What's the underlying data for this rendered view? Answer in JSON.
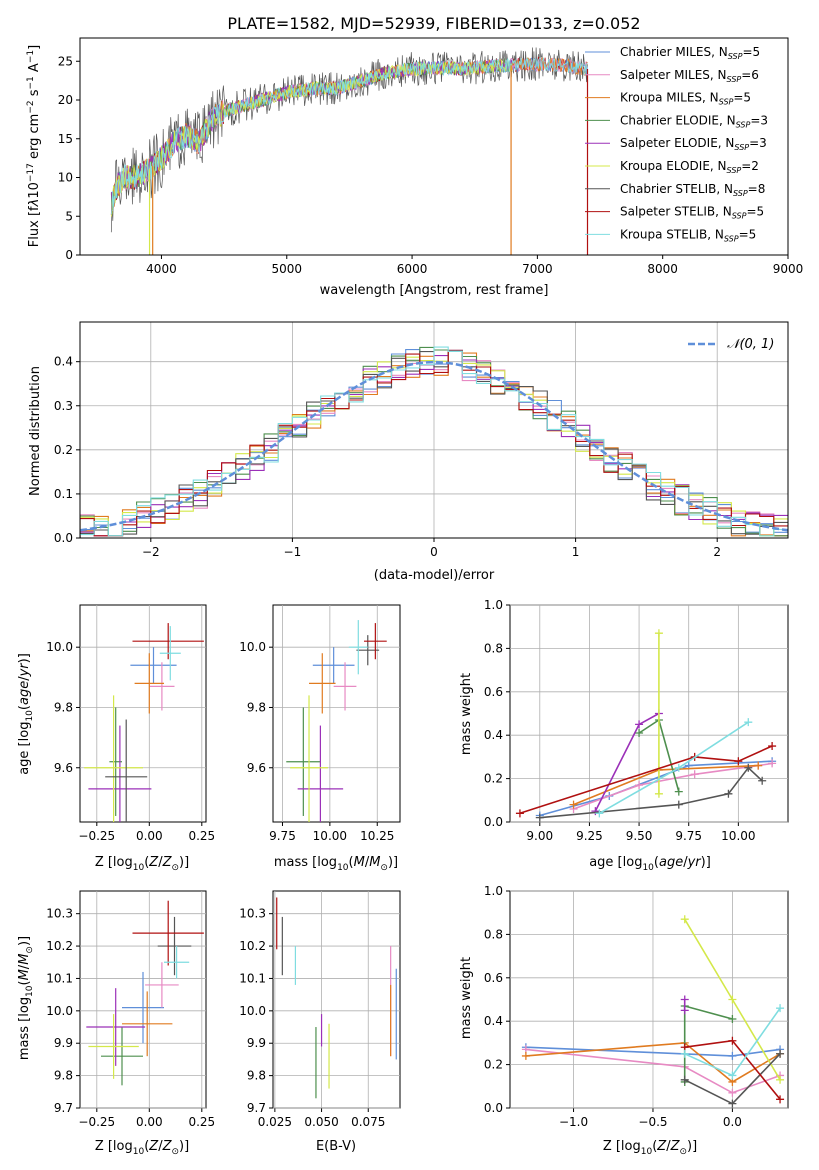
{
  "chart_data": [
    {
      "id": "spectrum",
      "type": "line",
      "title": "PLATE=1582, MJD=52939, FIBERID=0133, z=0.052",
      "xlabel": "wavelength [Angstrom, rest frame]",
      "ylabel": "Flux [f_λ10^-17 erg cm^-2 s^-1 A^-1]",
      "xlim": [
        3350,
        9000
      ],
      "ylim": [
        0,
        28
      ],
      "xticks": [
        4000,
        5000,
        6000,
        7000,
        8000,
        9000
      ],
      "yticks": [
        0,
        5,
        10,
        15,
        20,
        25
      ],
      "legend_position": "upper-right",
      "envelope": {
        "x": [
          3600,
          3650,
          3700,
          3800,
          3900,
          4000,
          4100,
          4200,
          4300,
          4400,
          4500,
          4600,
          4800,
          5000,
          5200,
          5400,
          5600,
          5800,
          6000,
          6200,
          6400,
          6600,
          6800,
          7000,
          7200,
          7400
        ],
        "y": [
          6.5,
          9,
          10,
          10,
          11,
          12.5,
          14.5,
          15.5,
          14.5,
          17.5,
          18.5,
          19,
          20,
          21,
          21.5,
          21.5,
          22.5,
          23.5,
          24,
          24.2,
          24,
          24.3,
          24.5,
          24.6,
          24.5,
          24
        ]
      },
      "series": [
        {
          "name": "Chabrier MILES",
          "nssp": "5",
          "color": "#5f8fd9",
          "end": 7400
        },
        {
          "name": "Salpeter MILES",
          "nssp": "6",
          "color": "#e78ac3",
          "end": 7400
        },
        {
          "name": "Kroupa MILES",
          "nssp": "5",
          "color": "#e07b20",
          "end": 7400
        },
        {
          "name": "Chabrier ELODIE",
          "nssp": "3",
          "color": "#4e8f4e",
          "end": 6800
        },
        {
          "name": "Salpeter ELODIE",
          "nssp": "3",
          "color": "#9b30b8",
          "end": 6800
        },
        {
          "name": "Kroupa ELODIE",
          "nssp": "2",
          "color": "#d4e84a",
          "end": 6800
        },
        {
          "name": "Chabrier STELIB",
          "nssp": "8",
          "color": "#555555",
          "end": 7400
        },
        {
          "name": "Salpeter STELIB",
          "nssp": "5",
          "color": "#b01010",
          "end": 7400
        },
        {
          "name": "Kroupa STELIB",
          "nssp": "5",
          "color": "#7fdde0",
          "end": 7400
        }
      ]
    },
    {
      "id": "residuals",
      "type": "area",
      "xlabel": "(data-model)/error",
      "ylabel": "Normed distribution",
      "xlim": [
        -2.5,
        2.5
      ],
      "ylim": [
        0,
        0.49
      ],
      "xticks": [
        -2,
        -1,
        0,
        1,
        2
      ],
      "yticks": [
        0.0,
        0.1,
        0.2,
        0.3,
        0.4
      ],
      "grid": true,
      "legend_position": "upper-right",
      "reference_curve": "𝒩(0, 1)",
      "bins": {
        "start": -2.5,
        "width": 0.1,
        "count": 50
      }
    },
    {
      "id": "Z-age",
      "type": "scatter",
      "xlabel": "Z [log10(Z/Z⊙)]",
      "ylabel": "age  [log10(age/yr)]",
      "xlim": [
        -0.33,
        0.27
      ],
      "ylim": [
        9.42,
        10.14
      ],
      "xticks": [
        -0.25,
        0.0,
        0.25
      ],
      "yticks": [
        9.6,
        9.8,
        10.0
      ],
      "grid": true,
      "points": [
        {
          "series": "Chabrier MILES",
          "x": 0.02,
          "xerr": 0.11,
          "y": 9.94,
          "yerr": 0.06
        },
        {
          "series": "Salpeter MILES",
          "x": 0.06,
          "xerr": 0.06,
          "y": 9.87,
          "yerr": 0.08
        },
        {
          "series": "Kroupa MILES",
          "x": 0.0,
          "xerr": 0.07,
          "y": 9.88,
          "yerr": 0.1
        },
        {
          "series": "Chabrier ELODIE",
          "x": -0.16,
          "xerr": 0.03,
          "y": 9.62,
          "yerr": 0.18
        },
        {
          "series": "Salpeter ELODIE",
          "x": -0.14,
          "xerr": 0.15,
          "y": 9.53,
          "yerr": 0.21
        },
        {
          "series": "Kroupa ELODIE",
          "x": -0.17,
          "xerr": 0.14,
          "y": 9.6,
          "yerr": 0.24
        },
        {
          "series": "Chabrier STELIB",
          "x": -0.11,
          "xerr": 0.1,
          "y": 9.57,
          "yerr": 0.19
        },
        {
          "series": "Salpeter STELIB",
          "x": 0.09,
          "xerr": 0.17,
          "y": 10.02,
          "yerr": 0.06
        },
        {
          "series": "Kroupa STELIB",
          "x": 0.1,
          "xerr": 0.05,
          "y": 9.98,
          "yerr": 0.09
        }
      ]
    },
    {
      "id": "mass-age",
      "type": "scatter",
      "xlabel": "mass [log10(M/M⊙)]",
      "ylabel": "",
      "xlim": [
        9.7,
        10.37
      ],
      "ylim": [
        9.42,
        10.14
      ],
      "xticks": [
        9.75,
        10.0,
        10.25
      ],
      "yticks": [
        9.6,
        9.8,
        10.0
      ],
      "grid": true,
      "points": [
        {
          "series": "Chabrier MILES",
          "x": 10.02,
          "xerr": 0.11,
          "y": 9.94,
          "yerr": 0.06
        },
        {
          "series": "Salpeter MILES",
          "x": 10.08,
          "xerr": 0.06,
          "y": 9.87,
          "yerr": 0.08
        },
        {
          "series": "Kroupa MILES",
          "x": 9.96,
          "xerr": 0.07,
          "y": 9.88,
          "yerr": 0.1
        },
        {
          "series": "Chabrier ELODIE",
          "x": 9.86,
          "xerr": 0.09,
          "y": 9.62,
          "yerr": 0.18
        },
        {
          "series": "Salpeter ELODIE",
          "x": 9.95,
          "xerr": 0.12,
          "y": 9.53,
          "yerr": 0.21
        },
        {
          "series": "Kroupa ELODIE",
          "x": 9.89,
          "xerr": 0.1,
          "y": 9.6,
          "yerr": 0.24
        },
        {
          "series": "Chabrier STELIB",
          "x": 10.2,
          "xerr": 0.06,
          "y": 9.99,
          "yerr": 0.05
        },
        {
          "series": "Salpeter STELIB",
          "x": 10.24,
          "xerr": 0.06,
          "y": 10.02,
          "yerr": 0.06
        },
        {
          "series": "Kroupa STELIB",
          "x": 10.15,
          "xerr": 0.05,
          "y": 10.0,
          "yerr": 0.09
        }
      ]
    },
    {
      "id": "age-weight",
      "type": "line",
      "xlabel": "age  [log10(age/yr)]",
      "ylabel": "mass weight",
      "xlim": [
        8.85,
        10.25
      ],
      "ylim": [
        0,
        1
      ],
      "xticks": [
        9.0,
        9.25,
        9.5,
        9.75,
        10.0
      ],
      "yticks": [
        0.0,
        0.2,
        0.4,
        0.6,
        0.8,
        1.0
      ],
      "grid": true,
      "series": [
        {
          "name": "Chabrier MILES",
          "x": [
            9.0,
            9.35,
            9.75,
            10.17
          ],
          "y": [
            0.03,
            0.12,
            0.26,
            0.28
          ]
        },
        {
          "name": "Salpeter MILES",
          "x": [
            9.17,
            9.5,
            9.78,
            10.1,
            10.17
          ],
          "y": [
            0.06,
            0.17,
            0.22,
            0.26,
            0.27
          ]
        },
        {
          "name": "Kroupa MILES",
          "x": [
            9.17,
            9.6,
            10.1
          ],
          "y": [
            0.08,
            0.24,
            0.26
          ]
        },
        {
          "name": "Chabrier ELODIE",
          "x": [
            9.5,
            9.6,
            9.7
          ],
          "y": [
            0.41,
            0.47,
            0.14
          ]
        },
        {
          "name": "Salpeter ELODIE",
          "x": [
            9.28,
            9.5,
            9.6
          ],
          "y": [
            0.05,
            0.45,
            0.5
          ]
        },
        {
          "name": "Kroupa ELODIE",
          "x": [
            9.6,
            9.6
          ],
          "y": [
            0.87,
            0.13
          ]
        },
        {
          "name": "Chabrier STELIB",
          "x": [
            9.0,
            9.7,
            9.95,
            10.05,
            10.12
          ],
          "y": [
            0.02,
            0.08,
            0.13,
            0.25,
            0.19
          ]
        },
        {
          "name": "Salpeter STELIB",
          "x": [
            8.9,
            9.78,
            10.0,
            10.17
          ],
          "y": [
            0.04,
            0.3,
            0.28,
            0.35
          ]
        },
        {
          "name": "Kroupa STELIB",
          "x": [
            9.3,
            9.7,
            10.05
          ],
          "y": [
            0.04,
            0.25,
            0.46
          ]
        }
      ]
    },
    {
      "id": "Z-mass",
      "type": "scatter",
      "xlabel": "Z [log10(Z/Z⊙)]",
      "ylabel": "mass [log10(M/M⊙)]",
      "xlim": [
        -0.33,
        0.27
      ],
      "ylim": [
        9.7,
        10.37
      ],
      "xticks": [
        -0.25,
        0.0,
        0.25
      ],
      "yticks": [
        9.7,
        9.8,
        9.9,
        10.0,
        10.1,
        10.2,
        10.3
      ],
      "grid": true,
      "points": [
        {
          "series": "Chabrier MILES",
          "x": -0.03,
          "xerr": 0.1,
          "y": 10.01,
          "yerr": 0.11
        },
        {
          "series": "Salpeter MILES",
          "x": 0.06,
          "xerr": 0.08,
          "y": 10.08,
          "yerr": 0.07
        },
        {
          "series": "Kroupa MILES",
          "x": -0.01,
          "xerr": 0.12,
          "y": 9.96,
          "yerr": 0.1
        },
        {
          "series": "Chabrier ELODIE",
          "x": -0.13,
          "xerr": 0.1,
          "y": 9.86,
          "yerr": 0.09
        },
        {
          "series": "Salpeter ELODIE",
          "x": -0.16,
          "xerr": 0.14,
          "y": 9.95,
          "yerr": 0.12
        },
        {
          "series": "Kroupa ELODIE",
          "x": -0.17,
          "xerr": 0.12,
          "y": 9.89,
          "yerr": 0.1
        },
        {
          "series": "Chabrier STELIB",
          "x": 0.12,
          "xerr": 0.08,
          "y": 10.2,
          "yerr": 0.09
        },
        {
          "series": "Salpeter STELIB",
          "x": 0.09,
          "xerr": 0.17,
          "y": 10.24,
          "yerr": 0.1
        },
        {
          "series": "Kroupa STELIB",
          "x": 0.13,
          "xerr": 0.06,
          "y": 10.15,
          "yerr": 0.05
        }
      ]
    },
    {
      "id": "ebv-mass",
      "type": "scatter",
      "xlabel": "E(B-V)",
      "ylabel": "",
      "xlim": [
        0.024,
        0.092
      ],
      "ylim": [
        9.7,
        10.37
      ],
      "xticks": [
        0.025,
        0.05,
        0.075
      ],
      "yticks": [
        9.7,
        9.8,
        9.9,
        10.0,
        10.1,
        10.2,
        10.3
      ],
      "grid": true,
      "points": [
        {
          "series": "Chabrier MILES",
          "x": 0.09,
          "yerr": 0.14,
          "y": 9.99
        },
        {
          "series": "Salpeter MILES",
          "x": 0.087,
          "yerr": 0.17,
          "y": 10.03
        },
        {
          "series": "Kroupa MILES",
          "x": 0.087,
          "yerr": 0.11,
          "y": 9.97
        },
        {
          "series": "Chabrier ELODIE",
          "x": 0.047,
          "yerr": 0.11,
          "y": 9.84
        },
        {
          "series": "Salpeter ELODIE",
          "x": 0.05,
          "yerr": 0.05,
          "y": 9.94
        },
        {
          "series": "Kroupa ELODIE",
          "x": 0.054,
          "yerr": 0.1,
          "y": 9.86
        },
        {
          "series": "Chabrier STELIB",
          "x": 0.029,
          "yerr": 0.09,
          "y": 10.2
        },
        {
          "series": "Salpeter STELIB",
          "x": 0.026,
          "yerr": 0.08,
          "y": 10.27
        },
        {
          "series": "Kroupa STELIB",
          "x": 0.036,
          "yerr": 0.06,
          "y": 10.14
        }
      ]
    },
    {
      "id": "Z-weight",
      "type": "line",
      "xlabel": "Z [log10(Z/Z⊙)]",
      "ylabel": "mass weight",
      "xlim": [
        -1.4,
        0.35
      ],
      "ylim": [
        0,
        1
      ],
      "xticks": [
        -1.0,
        -0.5,
        0.0
      ],
      "yticks": [
        0.0,
        0.2,
        0.4,
        0.6,
        0.8,
        1.0
      ],
      "grid": true,
      "series": [
        {
          "name": "Chabrier MILES",
          "x": [
            -1.3,
            0.0,
            0.3
          ],
          "y": [
            0.28,
            0.24,
            0.27
          ]
        },
        {
          "name": "Salpeter MILES",
          "x": [
            -1.3,
            -0.3,
            0.0,
            0.3
          ],
          "y": [
            0.27,
            0.19,
            0.07,
            0.15
          ]
        },
        {
          "name": "Kroupa MILES",
          "x": [
            -1.3,
            -0.3,
            0.0,
            0.3
          ],
          "y": [
            0.24,
            0.3,
            0.12,
            0.25
          ]
        },
        {
          "name": "Chabrier ELODIE",
          "x": [
            -0.3,
            -0.3,
            0.0
          ],
          "y": [
            0.12,
            0.47,
            0.41
          ]
        },
        {
          "name": "Salpeter ELODIE",
          "x": [
            -0.3,
            -0.3
          ],
          "y": [
            0.5,
            0.45
          ]
        },
        {
          "name": "Kroupa ELODIE",
          "x": [
            -0.3,
            0.0,
            0.3
          ],
          "y": [
            0.87,
            0.5,
            0.13
          ]
        },
        {
          "name": "Chabrier STELIB",
          "x": [
            -0.3,
            0.0,
            0.3
          ],
          "y": [
            0.13,
            0.02,
            0.25
          ]
        },
        {
          "name": "Salpeter STELIB",
          "x": [
            -0.3,
            0.0,
            0.3
          ],
          "y": [
            0.28,
            0.31,
            0.04
          ]
        },
        {
          "name": "Kroupa STELIB",
          "x": [
            -0.3,
            0.0,
            0.3
          ],
          "y": [
            0.25,
            0.15,
            0.46
          ]
        }
      ]
    }
  ]
}
